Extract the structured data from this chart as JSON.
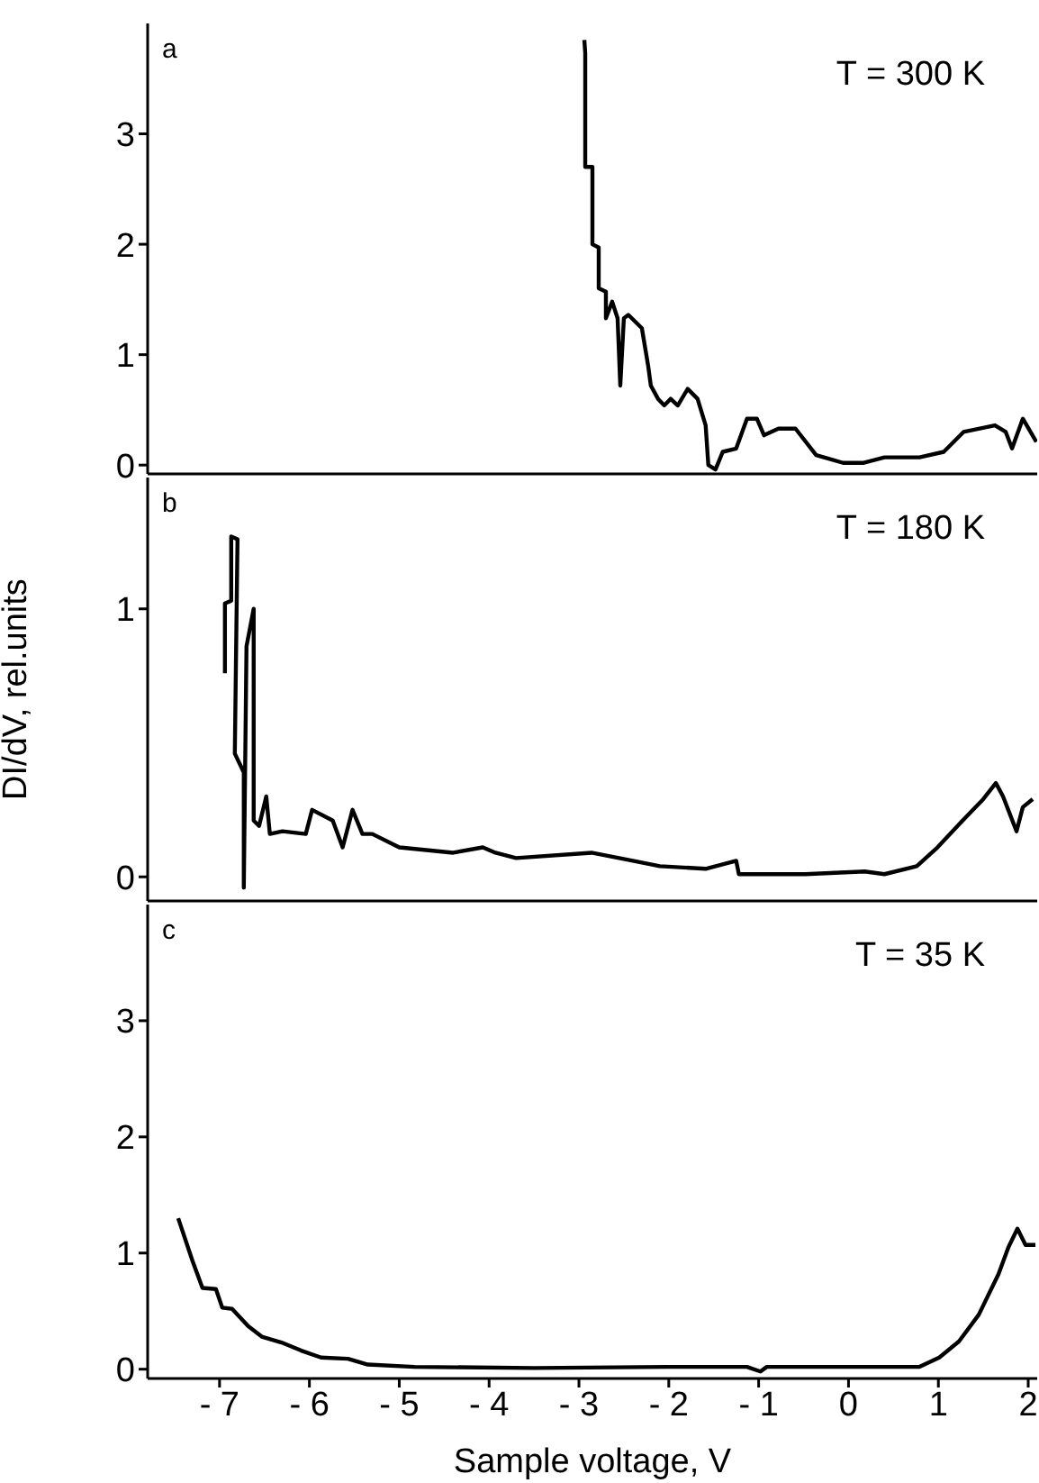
{
  "chart_data": [
    {
      "type": "line",
      "annotations": [
        "a",
        "T =  300 K"
      ],
      "xlim": [
        -7.8,
        2.1
      ],
      "xticks": [
        -7,
        -6,
        -5,
        -4,
        -3,
        -2,
        -1,
        0,
        1,
        2
      ],
      "ylim": [
        -0.08,
        4.0
      ],
      "yticks": [
        0,
        1,
        2,
        3
      ],
      "tick_labels": "y",
      "marker": "none",
      "line_style": "solid",
      "series": [
        {
          "color": "#000000",
          "x": [
            -2.94,
            -2.93,
            -2.93,
            -2.85,
            -2.85,
            -2.78,
            -2.78,
            -2.7,
            -2.7,
            -2.63,
            -2.57,
            -2.54,
            -2.5,
            -2.45,
            -2.3,
            -2.23,
            -2.2,
            -2.12,
            -2.05,
            -1.98,
            -1.9,
            -1.79,
            -1.68,
            -1.59,
            -1.56,
            -1.48,
            -1.4,
            -1.25,
            -1.13,
            -1.02,
            -0.94,
            -0.78,
            -0.59,
            -0.36,
            -0.06,
            0.17,
            0.4,
            0.79,
            1.06,
            1.28,
            1.63,
            1.75,
            1.82,
            1.94,
            2.09
          ],
          "values": [
            3.85,
            3.73,
            2.7,
            2.7,
            2.0,
            1.97,
            1.6,
            1.57,
            1.33,
            1.48,
            1.33,
            0.72,
            1.33,
            1.36,
            1.24,
            0.9,
            0.72,
            0.6,
            0.54,
            0.6,
            0.54,
            0.69,
            0.6,
            0.36,
            0.0,
            -0.04,
            0.12,
            0.15,
            0.42,
            0.42,
            0.27,
            0.33,
            0.33,
            0.09,
            0.02,
            0.02,
            0.07,
            0.07,
            0.12,
            0.3,
            0.36,
            0.3,
            0.15,
            0.42,
            0.21
          ]
        }
      ]
    },
    {
      "type": "line",
      "annotations": [
        "b",
        "T = 180 K"
      ],
      "ylabel": "DI/dV, rel.units",
      "xlim": [
        -7.8,
        2.1
      ],
      "xticks": [
        -7,
        -6,
        -5,
        -4,
        -3,
        -2,
        -1,
        0,
        1,
        2
      ],
      "ylim": [
        -0.09,
        1.49
      ],
      "yticks": [
        0,
        1
      ],
      "tick_labels": "y",
      "marker": "none",
      "line_style": "solid",
      "series": [
        {
          "color": "#000000",
          "x": [
            -6.94,
            -6.94,
            -6.87,
            -6.87,
            -6.8,
            -6.83,
            -6.73,
            -6.73,
            -6.7,
            -6.62,
            -6.62,
            -6.56,
            -6.48,
            -6.44,
            -6.3,
            -6.04,
            -5.97,
            -5.74,
            -5.63,
            -5.52,
            -5.41,
            -5.3,
            -5.0,
            -4.7,
            -4.4,
            -4.07,
            -3.93,
            -3.7,
            -2.86,
            -2.4,
            -2.1,
            -1.59,
            -1.25,
            -1.22,
            -0.48,
            0.18,
            0.4,
            0.76,
            0.99,
            1.27,
            1.5,
            1.64,
            1.72,
            1.87,
            1.94,
            2.05
          ],
          "values": [
            0.76,
            1.02,
            1.03,
            1.27,
            1.26,
            0.46,
            0.39,
            -0.04,
            0.86,
            1.0,
            0.21,
            0.19,
            0.3,
            0.16,
            0.17,
            0.16,
            0.25,
            0.21,
            0.11,
            0.25,
            0.16,
            0.16,
            0.11,
            0.1,
            0.09,
            0.11,
            0.09,
            0.07,
            0.09,
            0.06,
            0.04,
            0.03,
            0.06,
            0.01,
            0.01,
            0.02,
            0.01,
            0.04,
            0.11,
            0.21,
            0.29,
            0.35,
            0.3,
            0.17,
            0.26,
            0.29
          ]
        }
      ]
    },
    {
      "type": "line",
      "annotations": [
        "c",
        "T = 35 K"
      ],
      "xlabel": "Sample voltage, V",
      "xlim": [
        -7.8,
        2.1
      ],
      "xticks": [
        -7,
        -6,
        -5,
        -4,
        -3,
        -2,
        -1,
        0,
        1,
        2
      ],
      "ylim": [
        -0.08,
        4.0
      ],
      "yticks": [
        0,
        1,
        2,
        3
      ],
      "marker": "none",
      "line_style": "solid",
      "series": [
        {
          "color": "#000000",
          "x": [
            -7.46,
            -7.3,
            -7.19,
            -7.04,
            -6.97,
            -6.86,
            -6.68,
            -6.53,
            -6.31,
            -6.09,
            -5.87,
            -5.57,
            -5.35,
            -4.83,
            -3.5,
            -2.02,
            -1.13,
            -0.98,
            -0.91,
            0.79,
            1.01,
            1.23,
            1.45,
            1.67,
            1.78,
            1.88,
            1.97,
            2.08
          ],
          "values": [
            1.3,
            0.93,
            0.7,
            0.69,
            0.53,
            0.52,
            0.37,
            0.28,
            0.23,
            0.16,
            0.1,
            0.09,
            0.04,
            0.02,
            0.01,
            0.02,
            0.02,
            -0.02,
            0.02,
            0.02,
            0.1,
            0.24,
            0.47,
            0.82,
            1.05,
            1.21,
            1.07,
            1.07
          ]
        }
      ]
    }
  ]
}
